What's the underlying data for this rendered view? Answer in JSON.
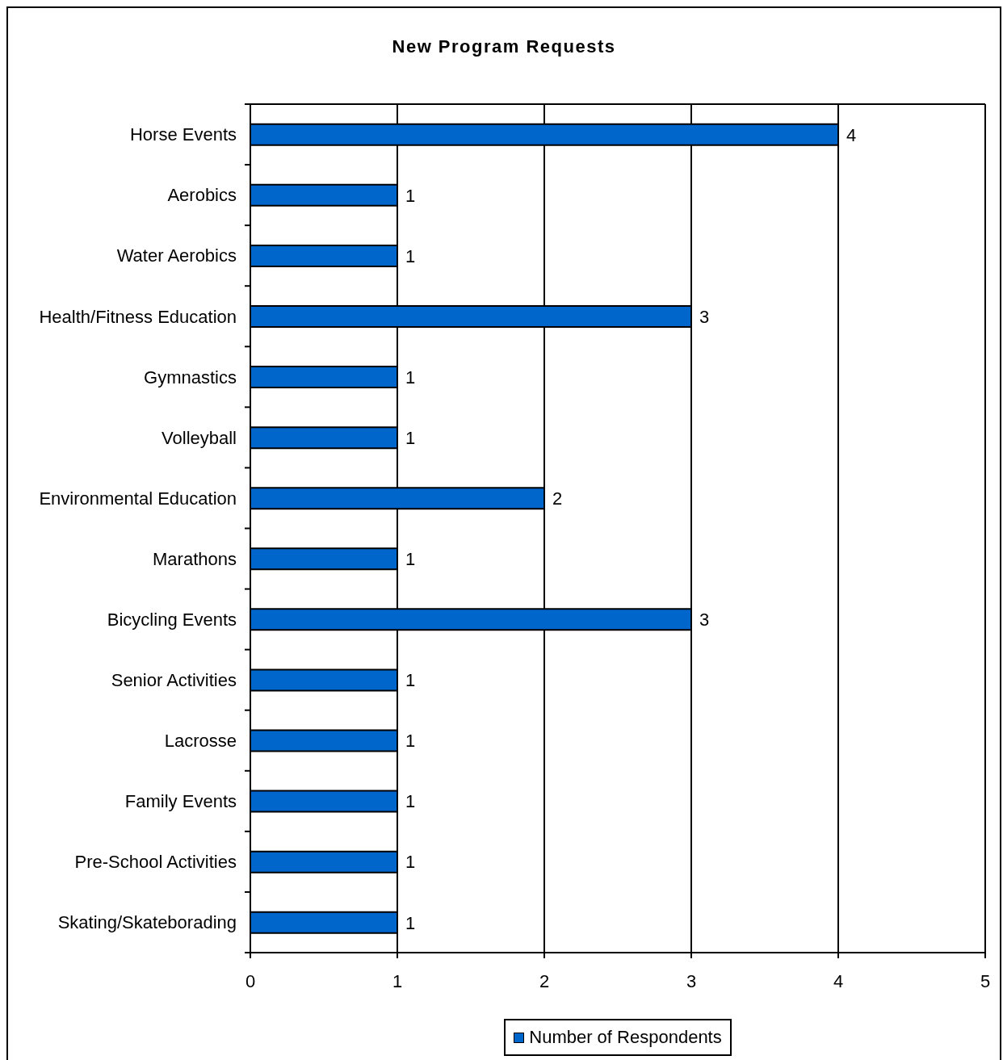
{
  "chart_data": {
    "type": "bar",
    "orientation": "horizontal",
    "title": "New Program Requests",
    "categories": [
      "Horse Events",
      "Aerobics",
      "Water Aerobics",
      "Health/Fitness Education",
      "Gymnastics",
      "Volleyball",
      "Environmental Education",
      "Marathons",
      "Bicycling Events",
      "Senior Activities",
      "Lacrosse",
      "Family Events",
      "Pre-School Activities",
      "Skating/Skateborading"
    ],
    "series": [
      {
        "name": "Number of Respondents",
        "color": "#0066cc",
        "values": [
          4,
          1,
          1,
          3,
          1,
          1,
          2,
          1,
          3,
          1,
          1,
          1,
          1,
          1
        ]
      }
    ],
    "xlim": [
      0,
      5
    ],
    "xticks": [
      0,
      1,
      2,
      3,
      4,
      5
    ],
    "grid": "x",
    "legend": "bottom",
    "data_labels": true
  }
}
